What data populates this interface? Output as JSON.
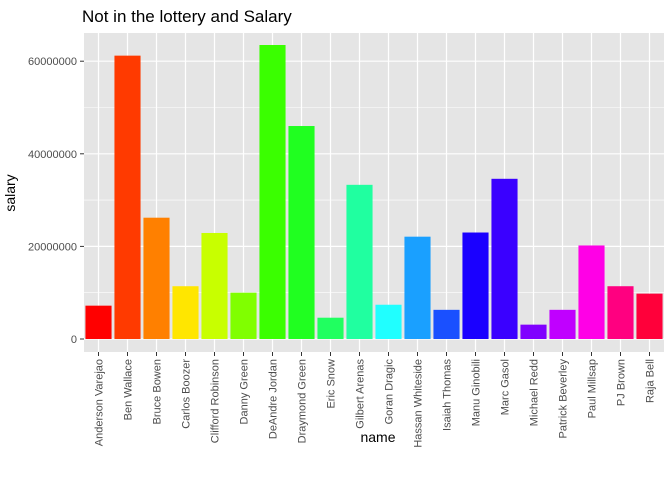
{
  "chart_data": {
    "type": "bar",
    "title": "Not in the lottery and Salary",
    "xlabel": "name",
    "ylabel": "salary",
    "ylim": [
      0,
      66000000
    ],
    "y_ticks": [
      0,
      20000000,
      40000000,
      60000000
    ],
    "y_tick_labels": [
      "0",
      "20000000",
      "40000000",
      "60000000"
    ],
    "grid": true,
    "panel_background": "#e5e5e5",
    "grid_color": "#ffffff",
    "categories": [
      "Anderson Varejao",
      "Ben Wallace",
      "Bruce Bowen",
      "Carlos Boozer",
      "Clifford Robinson",
      "Danny Green",
      "DeAndre Jordan",
      "Draymond Green",
      "Eric Snow",
      "Gilbert Arenas",
      "Goran Dragic",
      "Hassan Whiteside",
      "Isaiah Thomas",
      "Manu Ginobili",
      "Marc Gasol",
      "Michael Redd",
      "Patrick Beverley",
      "Paul Millsap",
      "PJ Brown",
      "Raja Bell"
    ],
    "values": [
      7200000,
      61200000,
      26200000,
      11400000,
      22900000,
      10000000,
      63500000,
      46000000,
      4600000,
      33300000,
      7400000,
      22100000,
      6300000,
      23000000,
      34600000,
      3100000,
      6300000,
      20200000,
      11400000,
      9800000
    ],
    "colors": [
      "#ff0000",
      "#ff3a00",
      "#ff8000",
      "#ffe600",
      "#c8ff00",
      "#80ff00",
      "#3aff00",
      "#20ff20",
      "#20ff60",
      "#20ffa0",
      "#20ffff",
      "#1aa0ff",
      "#1a50ff",
      "#1a00ff",
      "#3a00ff",
      "#8000ff",
      "#c000ff",
      "#ff00e6",
      "#ff0080",
      "#ff003a"
    ]
  }
}
